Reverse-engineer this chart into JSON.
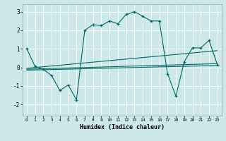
{
  "title": "",
  "xlabel": "Humidex (Indice chaleur)",
  "background_color": "#cce8e8",
  "grid_color": "#ffffff",
  "line_color": "#006666",
  "xlim": [
    -0.5,
    23.5
  ],
  "ylim": [
    -2.6,
    3.4
  ],
  "yticks": [
    -2,
    -1,
    0,
    1,
    2,
    3
  ],
  "xticks": [
    0,
    1,
    2,
    3,
    4,
    5,
    6,
    7,
    8,
    9,
    10,
    11,
    12,
    13,
    14,
    15,
    16,
    17,
    18,
    19,
    20,
    21,
    22,
    23
  ],
  "main_x": [
    0,
    1,
    2,
    3,
    4,
    5,
    6,
    7,
    8,
    9,
    10,
    11,
    12,
    13,
    14,
    15,
    16,
    17,
    18,
    19,
    20,
    21,
    22,
    23
  ],
  "main_y": [
    1.0,
    0.05,
    -0.1,
    -0.45,
    -1.25,
    -0.95,
    -1.75,
    2.0,
    2.3,
    2.25,
    2.5,
    2.35,
    2.85,
    3.0,
    2.75,
    2.5,
    2.5,
    -0.35,
    -1.55,
    0.3,
    1.05,
    1.05,
    1.45,
    0.15
  ],
  "trend1_x": [
    0,
    23
  ],
  "trend1_y": [
    -0.05,
    0.9
  ],
  "trend2_x": [
    0,
    23
  ],
  "trend2_y": [
    -0.1,
    0.2
  ],
  "trend3_x": [
    0,
    23
  ],
  "trend3_y": [
    -0.15,
    0.1
  ]
}
